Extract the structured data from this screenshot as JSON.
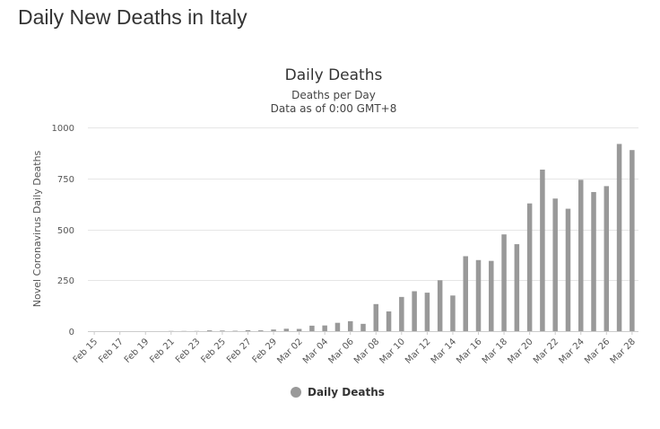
{
  "page": {
    "title": "Daily New Deaths in Italy"
  },
  "colors": {
    "bar": "#999999",
    "grid": "#e6e6e6",
    "axis": "#cccccc"
  },
  "chart_data": {
    "type": "bar",
    "title": "Daily Deaths",
    "subtitle": [
      "Deaths per Day",
      "Data as of 0:00 GMT+8"
    ],
    "xlabel": "",
    "ylabel": "Novel Coronavirus Daily Deaths",
    "ylim": [
      0,
      1000
    ],
    "yticks": [
      0,
      250,
      500,
      750,
      1000
    ],
    "grid": true,
    "legend_position": "bottom-center",
    "categories": [
      "Feb 15",
      "Feb 16",
      "Feb 17",
      "Feb 18",
      "Feb 19",
      "Feb 20",
      "Feb 21",
      "Feb 22",
      "Feb 23",
      "Feb 24",
      "Feb 25",
      "Feb 26",
      "Feb 27",
      "Feb 28",
      "Feb 29",
      "Mar 01",
      "Mar 02",
      "Mar 03",
      "Mar 04",
      "Mar 05",
      "Mar 06",
      "Mar 07",
      "Mar 08",
      "Mar 09",
      "Mar 10",
      "Mar 11",
      "Mar 12",
      "Mar 13",
      "Mar 14",
      "Mar 15",
      "Mar 16",
      "Mar 17",
      "Mar 18",
      "Mar 19",
      "Mar 20",
      "Mar 21",
      "Mar 22",
      "Mar 23",
      "Mar 24",
      "Mar 25",
      "Mar 26",
      "Mar 27",
      "Mar 28"
    ],
    "xtick_labels": [
      "Feb 15",
      "Feb 17",
      "Feb 19",
      "Feb 21",
      "Feb 23",
      "Feb 25",
      "Feb 27",
      "Feb 29",
      "Mar 02",
      "Mar 04",
      "Mar 06",
      "Mar 08",
      "Mar 10",
      "Mar 12",
      "Mar 14",
      "Mar 16",
      "Mar 18",
      "Mar 20",
      "Mar 22",
      "Mar 24",
      "Mar 26",
      "Mar 28"
    ],
    "series": [
      {
        "name": "Daily Deaths",
        "values": [
          0,
          0,
          0,
          0,
          0,
          0,
          1,
          1,
          1,
          4,
          3,
          2,
          5,
          4,
          8,
          12,
          11,
          27,
          28,
          41,
          49,
          36,
          133,
          97,
          168,
          196,
          189,
          250,
          175,
          368,
          349,
          345,
          475,
          427,
          627,
          793,
          651,
          601,
          743,
          683,
          712,
          919,
          889
        ]
      }
    ]
  }
}
